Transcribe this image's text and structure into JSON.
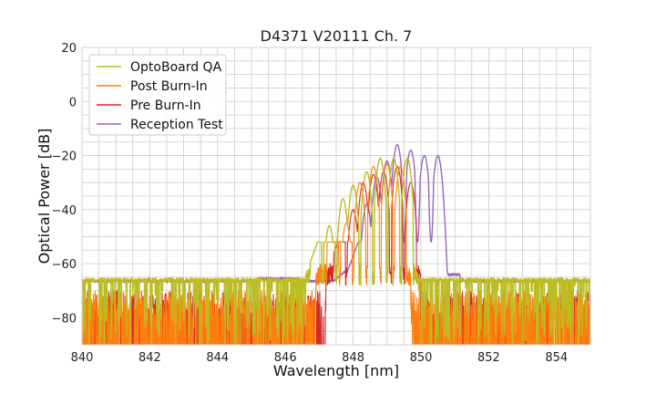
{
  "chart_data": {
    "type": "line",
    "title": "D4371 V20111 Ch. 7",
    "xlabel": "Wavelength [nm]",
    "ylabel": "Optical Power [dB]",
    "xlim": [
      840,
      855
    ],
    "ylim": [
      -90,
      20
    ],
    "xticks": [
      840,
      842,
      844,
      846,
      848,
      850,
      852,
      854
    ],
    "xtick_labels": [
      "840",
      "842",
      "844",
      "846",
      "848",
      "850",
      "852",
      "854"
    ],
    "yticks": [
      20,
      0,
      -20,
      -40,
      -60,
      -80
    ],
    "ytick_labels": [
      "20",
      "0",
      "−20",
      "−40",
      "−60",
      "−80"
    ],
    "grid": true,
    "legend_position": "top-left",
    "series": [
      {
        "name": "OptoBoard QA",
        "color": "#bcbd22",
        "peaks": [
          [
            846.9,
            -55
          ],
          [
            847.3,
            -46
          ],
          [
            847.7,
            -36
          ],
          [
            848.0,
            -31
          ],
          [
            848.4,
            -26
          ],
          [
            848.8,
            -21
          ],
          [
            849.2,
            -21
          ],
          [
            849.6,
            -21
          ]
        ],
        "signal_range": [
          846.6,
          849.9
        ],
        "noise_floor": -66
      },
      {
        "name": "Post Burn-In",
        "color": "#ff7f0e",
        "peaks": [
          [
            847.4,
            -65
          ],
          [
            847.8,
            -45
          ],
          [
            848.2,
            -30
          ],
          [
            848.6,
            -24
          ],
          [
            849.0,
            -23
          ],
          [
            849.4,
            -24
          ]
        ],
        "signal_range": [
          846.9,
          849.7
        ],
        "noise_floor": -80
      },
      {
        "name": "Pre Burn-In",
        "color": "#d62728",
        "peaks": [
          [
            847.6,
            -60
          ],
          [
            848.0,
            -40
          ],
          [
            848.3,
            -30
          ],
          [
            848.6,
            -27
          ],
          [
            848.9,
            -26
          ],
          [
            849.3,
            -24
          ],
          [
            849.7,
            -30
          ]
        ],
        "signal_range": [
          847.2,
          850.0
        ],
        "noise_floor": -80
      },
      {
        "name": "Reception Test",
        "color": "#9467bd",
        "peaks": [
          [
            848.4,
            -38
          ],
          [
            848.7,
            -28
          ],
          [
            849.0,
            -22
          ],
          [
            849.3,
            -16
          ],
          [
            849.7,
            -18
          ],
          [
            850.1,
            -20
          ],
          [
            850.5,
            -20
          ]
        ],
        "signal_range": [
          847.8,
          850.8
        ],
        "baseline": -66.5
      }
    ]
  }
}
